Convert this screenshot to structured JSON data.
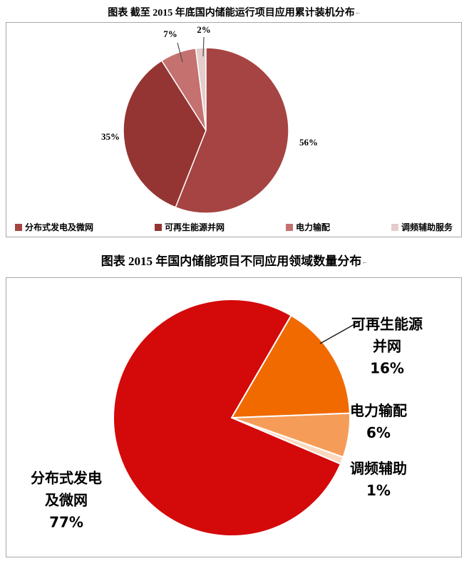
{
  "title_mark": "←",
  "chart_data": [
    {
      "type": "pie",
      "title": "图表  截至 2015 年底国内储能运行项目应用累计装机分布",
      "categories": [
        "分布式发电及微网",
        "可再生能源并网",
        "电力输配",
        "调频辅助服务"
      ],
      "values": [
        56,
        35,
        7,
        2
      ],
      "slice_labels": [
        "56%",
        "35%",
        "7%",
        "2%"
      ],
      "colors": [
        "#A54442",
        "#943533",
        "#C4716F",
        "#E5CDCC"
      ],
      "start_angle": 0,
      "legend_position": "bottom",
      "legend_labels": [
        "分布式发电及微网",
        "可再生能源并网",
        "电力输配",
        "调频辅助服务"
      ]
    },
    {
      "type": "pie",
      "title": "图表  2015 年国内储能项目不同应用领域数量分布",
      "categories": [
        "分布式发电及微网",
        "可再生能源并网",
        "电力输配",
        "调频辅助"
      ],
      "values": [
        77,
        16,
        6,
        1
      ],
      "slice_labels": [
        "77%",
        "16%",
        "6%",
        "1%"
      ],
      "colors": [
        "#D40909",
        "#F06A00",
        "#F59D58",
        "#FAD9BE"
      ],
      "start_angle": 113,
      "legend_position": "none",
      "callouts": {
        "distributed": [
          "分布式发电",
          "及微网",
          "77%"
        ],
        "renewable": [
          "可再生能源",
          "并网",
          "16%"
        ],
        "transmission": [
          "电力输配",
          "6%"
        ],
        "frequency": [
          "调频辅助",
          "1%"
        ]
      }
    }
  ]
}
